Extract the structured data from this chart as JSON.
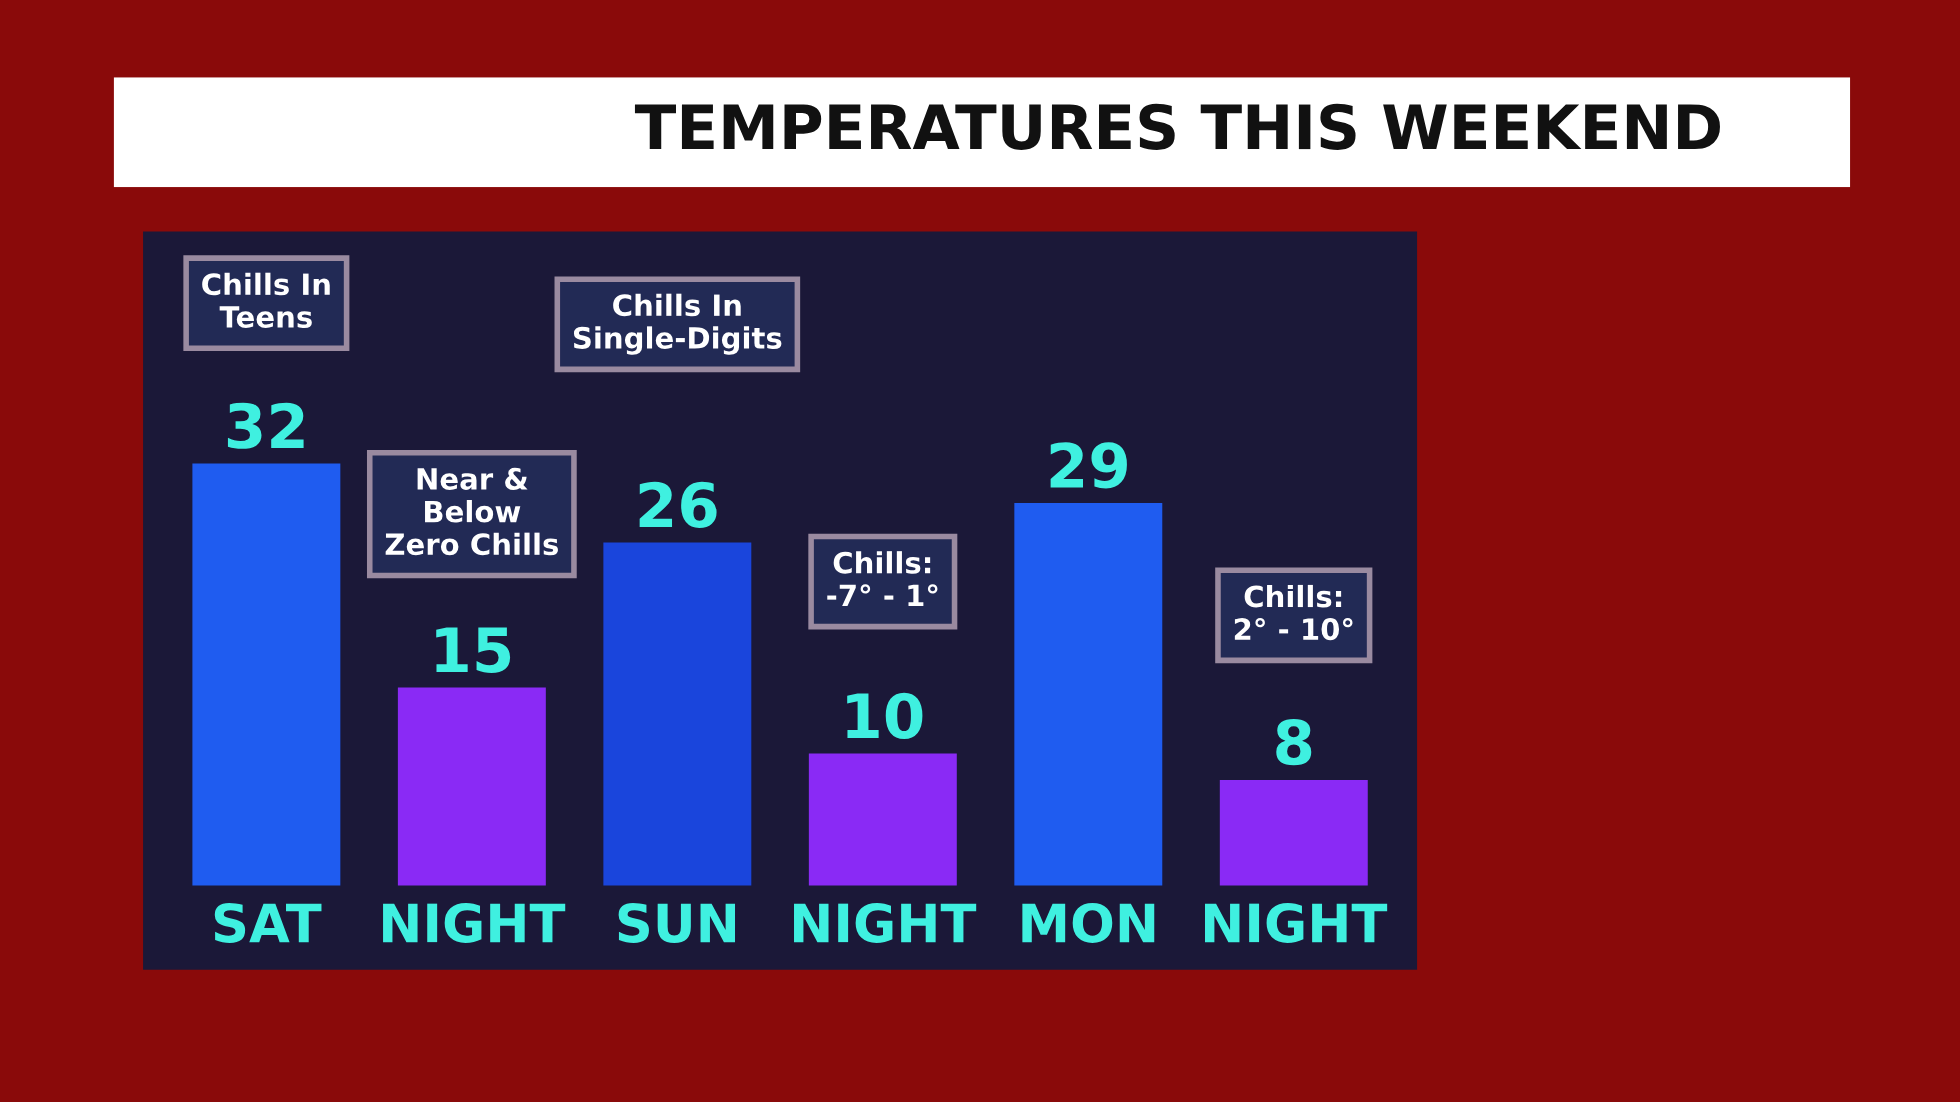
{
  "chart_data": {
    "type": "bar",
    "title": "TEMPERATURES THIS WEEKEND",
    "categories": [
      "SAT",
      "NIGHT",
      "SUN",
      "NIGHT",
      "MON",
      "NIGHT"
    ],
    "values": [
      32,
      15,
      26,
      10,
      29,
      8
    ],
    "colors": [
      "#1f5cf0",
      "#8a2af5",
      "#1a45dc",
      "#8a2af5",
      "#1f5cf0",
      "#8a2af5"
    ],
    "data_labels": true,
    "annotations": [
      "Chills In\nTeens",
      "Near &\nBelow\nZero Chills",
      "Chills In\nSingle-Digits",
      "Chills:\n-7° - 1°",
      "Chills:\n2° - 10°"
    ]
  }
}
